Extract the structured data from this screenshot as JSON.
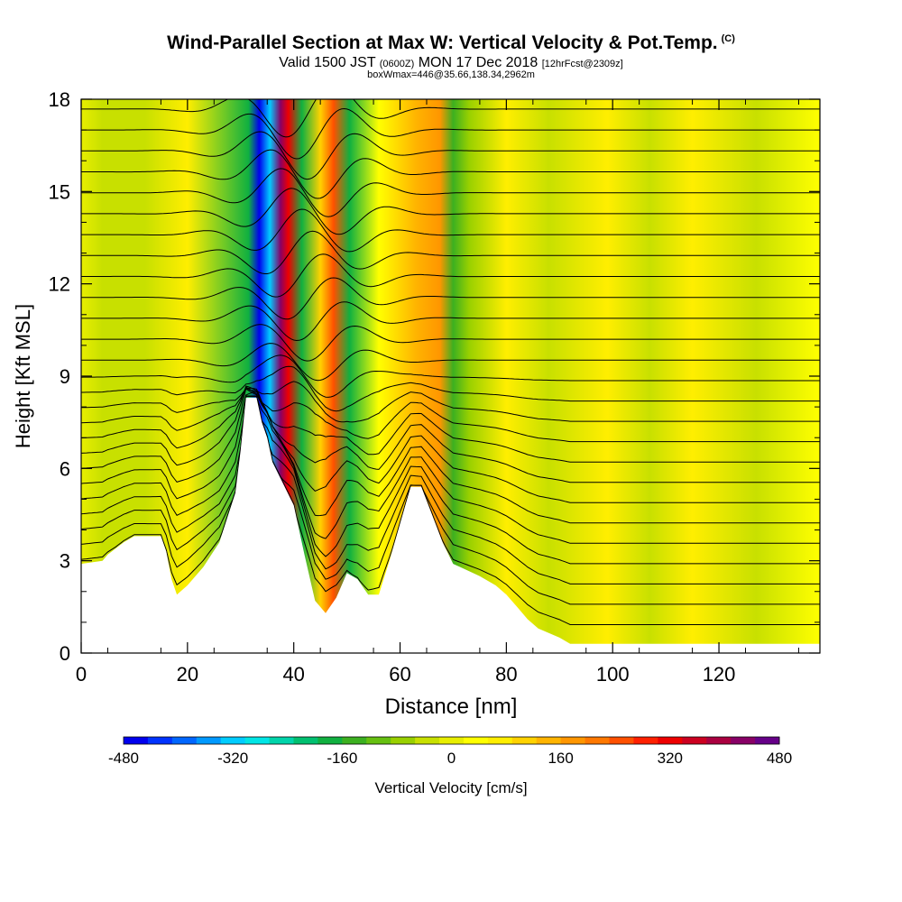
{
  "chart_data": {
    "type": "heatmap",
    "title": "Wind-Parallel Section at Max W: Vertical Velocity & Pot.Temp.",
    "title_suffix": "(C)",
    "subtitle": {
      "part1": "Valid 1500 JST ",
      "part2": "(0600Z)",
      "part3": " MON 17 Dec 2018 ",
      "part4": "[12hrFcst@2309z]"
    },
    "box_note": "boxWmax=446@35.66,138.34,2962m",
    "xlabel": "Distance [nm]",
    "ylabel": "Height [Kft MSL]",
    "xlim": [
      0,
      139
    ],
    "ylim": [
      0,
      18
    ],
    "x_ticks": [
      "0",
      "20",
      "40",
      "60",
      "80",
      "100",
      "120"
    ],
    "x_tick_values": [
      0,
      20,
      40,
      60,
      80,
      100,
      120
    ],
    "y_ticks": [
      "0",
      "3",
      "6",
      "9",
      "12",
      "15",
      "18"
    ],
    "y_tick_values": [
      0,
      3,
      6,
      9,
      12,
      15,
      18
    ],
    "colorbar": {
      "label": "Vertical Velocity [cm/s]",
      "tick_labels": [
        "-480",
        "-320",
        "-160",
        "0",
        "160",
        "320",
        "480"
      ],
      "tick_values": [
        -480,
        -320,
        -160,
        0,
        160,
        320,
        480
      ],
      "range": [
        -480,
        480
      ],
      "colors": [
        "#0000ee",
        "#0033ff",
        "#0066ff",
        "#0099ff",
        "#00ccff",
        "#00e5e5",
        "#00d4aa",
        "#00c070",
        "#10b040",
        "#3cb020",
        "#66c010",
        "#99d000",
        "#c8e000",
        "#e8ee00",
        "#ffff00",
        "#ffee00",
        "#ffd200",
        "#ffb400",
        "#ff9600",
        "#ff7800",
        "#ff5000",
        "#ff2000",
        "#ee0000",
        "#cc0020",
        "#aa0040",
        "#880066",
        "#660088"
      ]
    },
    "terrain_profile": {
      "x": [
        0,
        4,
        5,
        8,
        10,
        15,
        16,
        17,
        18,
        20,
        23,
        26,
        29,
        30,
        31,
        32,
        33,
        34,
        35,
        36,
        38,
        40,
        42,
        44,
        46,
        48,
        50,
        52,
        54,
        56,
        58,
        60,
        62,
        64,
        66,
        68,
        70,
        75,
        78,
        80,
        82,
        84,
        86,
        90,
        92,
        95,
        100,
        120,
        139
      ],
      "y": [
        2.9,
        3.0,
        3.2,
        3.6,
        3.8,
        3.8,
        3.3,
        2.4,
        1.9,
        2.2,
        2.8,
        3.6,
        5.2,
        6.6,
        8.3,
        8.3,
        8.3,
        7.5,
        7.0,
        6.2,
        5.5,
        4.8,
        3.2,
        1.7,
        1.3,
        1.8,
        2.6,
        2.4,
        1.9,
        1.9,
        3.0,
        4.2,
        5.4,
        5.4,
        4.5,
        3.6,
        2.9,
        2.5,
        2.2,
        1.9,
        1.5,
        1.1,
        0.8,
        0.5,
        0.3,
        0.3,
        0.3,
        0.3,
        0.3
      ]
    },
    "vertical_velocity_bands": [
      {
        "x": 31.5,
        "value": -200
      },
      {
        "x": 33.5,
        "value": -480
      },
      {
        "x": 35.5,
        "value": -320
      },
      {
        "x": 37.5,
        "value": 446
      },
      {
        "x": 39.0,
        "value": 330
      },
      {
        "x": 41.5,
        "value": -200
      },
      {
        "x": 45.0,
        "value": 120
      },
      {
        "x": 47.5,
        "value": 240
      },
      {
        "x": 50.5,
        "value": -180
      },
      {
        "x": 56.0,
        "value": 40
      },
      {
        "x": 63.0,
        "value": 130
      },
      {
        "x": 67.5,
        "value": 180
      },
      {
        "x": 70.0,
        "value": -160
      },
      {
        "x": 73.0,
        "value": -60
      },
      {
        "x": 80.0,
        "value": 60
      },
      {
        "x": 88.0,
        "value": -40
      },
      {
        "x": 99.0,
        "value": 60
      },
      {
        "x": 107.0,
        "value": -30
      },
      {
        "x": 115.0,
        "value": 60
      },
      {
        "x": 127.0,
        "value": -20
      },
      {
        "x": 12.0,
        "value": -30
      },
      {
        "x": 20.0,
        "value": 70
      },
      {
        "x": 4.0,
        "value": -40
      }
    ],
    "isentrope_count": 26,
    "series": [
      {
        "name": "Vertical Velocity [cm/s]"
      },
      {
        "name": "Pot.Temp."
      }
    ]
  }
}
